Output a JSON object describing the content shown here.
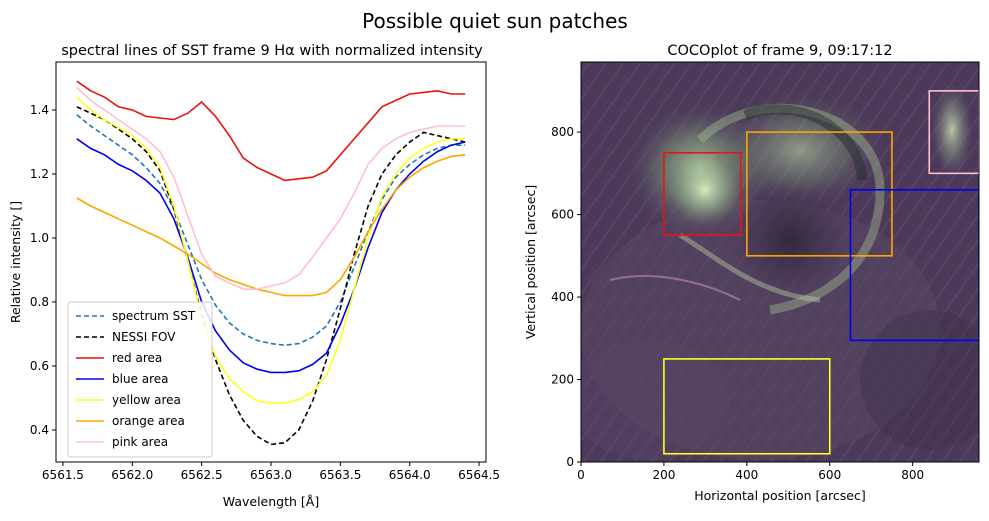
{
  "suptitle": "Possible quiet sun patches",
  "chart_data": [
    {
      "type": "line",
      "title": "spectral lines of SST frame 9 Hα with normalized intensity",
      "xlabel": "Wavelength [Å]",
      "ylabel": "Relative intensity []",
      "xlim": [
        6561.45,
        6564.55
      ],
      "ylim": [
        0.3,
        1.55
      ],
      "xticks": [
        6561.5,
        6562.0,
        6562.5,
        6563.0,
        6563.5,
        6564.0,
        6564.5
      ],
      "xtick_labels": [
        "6561.5",
        "6562.0",
        "6562.5",
        "6563.0",
        "6563.5",
        "6564.0",
        "6564.5"
      ],
      "yticks": [
        0.4,
        0.6,
        0.8,
        1.0,
        1.2,
        1.4
      ],
      "ytick_labels": [
        "0.4",
        "0.6",
        "0.8",
        "1.0",
        "1.2",
        "1.4"
      ],
      "legend_position": "lower-left",
      "x": [
        6561.6,
        6561.7,
        6561.8,
        6561.9,
        6562.0,
        6562.1,
        6562.2,
        6562.3,
        6562.4,
        6562.5,
        6562.6,
        6562.7,
        6562.8,
        6562.9,
        6563.0,
        6563.1,
        6563.2,
        6563.3,
        6563.4,
        6563.5,
        6563.6,
        6563.7,
        6563.8,
        6563.9,
        6564.0,
        6564.1,
        6564.2,
        6564.3,
        6564.4
      ],
      "series": [
        {
          "name": "spectrum SST",
          "color": "#1f77b4",
          "dashed": true,
          "values": [
            1.385,
            1.35,
            1.32,
            1.29,
            1.26,
            1.22,
            1.17,
            1.09,
            0.98,
            0.87,
            0.79,
            0.735,
            0.7,
            0.68,
            0.67,
            0.665,
            0.67,
            0.69,
            0.725,
            0.8,
            0.91,
            1.02,
            1.12,
            1.19,
            1.23,
            1.26,
            1.28,
            1.29,
            1.29
          ]
        },
        {
          "name": "NESSI FOV",
          "color": "#000000",
          "dashed": true,
          "values": [
            1.41,
            1.39,
            1.37,
            1.34,
            1.31,
            1.27,
            1.21,
            1.09,
            0.93,
            0.76,
            0.62,
            0.51,
            0.43,
            0.38,
            0.355,
            0.36,
            0.4,
            0.49,
            0.62,
            0.78,
            0.95,
            1.1,
            1.2,
            1.26,
            1.3,
            1.33,
            1.32,
            1.31,
            1.3
          ]
        },
        {
          "name": "red area",
          "color": "#e8140f",
          "dashed": false,
          "values": [
            1.49,
            1.46,
            1.44,
            1.41,
            1.4,
            1.38,
            1.375,
            1.37,
            1.39,
            1.425,
            1.38,
            1.32,
            1.25,
            1.22,
            1.2,
            1.18,
            1.185,
            1.19,
            1.21,
            1.26,
            1.31,
            1.36,
            1.41,
            1.43,
            1.45,
            1.455,
            1.46,
            1.45,
            1.45
          ]
        },
        {
          "name": "blue area",
          "color": "#0000ee",
          "dashed": false,
          "values": [
            1.31,
            1.28,
            1.26,
            1.23,
            1.21,
            1.18,
            1.14,
            1.06,
            0.94,
            0.8,
            0.71,
            0.65,
            0.61,
            0.59,
            0.58,
            0.58,
            0.585,
            0.605,
            0.64,
            0.73,
            0.84,
            0.97,
            1.08,
            1.15,
            1.2,
            1.24,
            1.27,
            1.29,
            1.3
          ]
        },
        {
          "name": "yellow area",
          "color": "#ffff22",
          "dashed": false,
          "values": [
            1.44,
            1.4,
            1.37,
            1.345,
            1.32,
            1.28,
            1.22,
            1.1,
            0.93,
            0.75,
            0.63,
            0.56,
            0.52,
            0.49,
            0.485,
            0.485,
            0.495,
            0.52,
            0.57,
            0.68,
            0.84,
            1.0,
            1.13,
            1.2,
            1.25,
            1.28,
            1.3,
            1.31,
            1.31
          ]
        },
        {
          "name": "orange area",
          "color": "#ffa500",
          "dashed": false,
          "values": [
            1.125,
            1.1,
            1.08,
            1.06,
            1.04,
            1.02,
            1.0,
            0.975,
            0.95,
            0.92,
            0.89,
            0.87,
            0.855,
            0.84,
            0.83,
            0.82,
            0.82,
            0.82,
            0.83,
            0.87,
            0.94,
            1.02,
            1.09,
            1.15,
            1.19,
            1.22,
            1.24,
            1.255,
            1.26
          ]
        },
        {
          "name": "pink area",
          "color": "#ffc0cb",
          "dashed": false,
          "values": [
            1.47,
            1.43,
            1.4,
            1.37,
            1.34,
            1.31,
            1.27,
            1.19,
            1.07,
            0.95,
            0.88,
            0.86,
            0.84,
            0.84,
            0.85,
            0.86,
            0.885,
            0.94,
            1.0,
            1.06,
            1.14,
            1.23,
            1.28,
            1.31,
            1.33,
            1.34,
            1.35,
            1.35,
            1.35
          ]
        }
      ]
    },
    {
      "type": "image",
      "title": "COCOplot of frame 9, 09:17:12",
      "xlabel": "Horizontal position [arcsec]",
      "ylabel": "Vertical position [arcsec]",
      "xlim": [
        0,
        960
      ],
      "ylim": [
        0,
        970
      ],
      "xticks": [
        0,
        200,
        400,
        600,
        800
      ],
      "xtick_labels": [
        "0",
        "200",
        "400",
        "600",
        "800"
      ],
      "yticks": [
        0,
        200,
        400,
        600,
        800
      ],
      "ytick_labels": [
        "0",
        "200",
        "400",
        "600",
        "800"
      ],
      "rectangles": [
        {
          "name": "red area",
          "color": "#e8140f",
          "x0": 200,
          "y0": 550,
          "x1": 385,
          "y1": 750
        },
        {
          "name": "orange area",
          "color": "#ffa500",
          "x0": 400,
          "y0": 500,
          "x1": 750,
          "y1": 800
        },
        {
          "name": "pink area",
          "color": "#ffc0cb",
          "x0": 840,
          "y0": 700,
          "x1": 960,
          "y1": 900
        },
        {
          "name": "blue area",
          "color": "#0000ee",
          "x0": 650,
          "y0": 295,
          "x1": 960,
          "y1": 660
        },
        {
          "name": "yellow area",
          "color": "#ffff22",
          "x0": 200,
          "y0": 20,
          "x1": 600,
          "y1": 250
        }
      ]
    }
  ]
}
